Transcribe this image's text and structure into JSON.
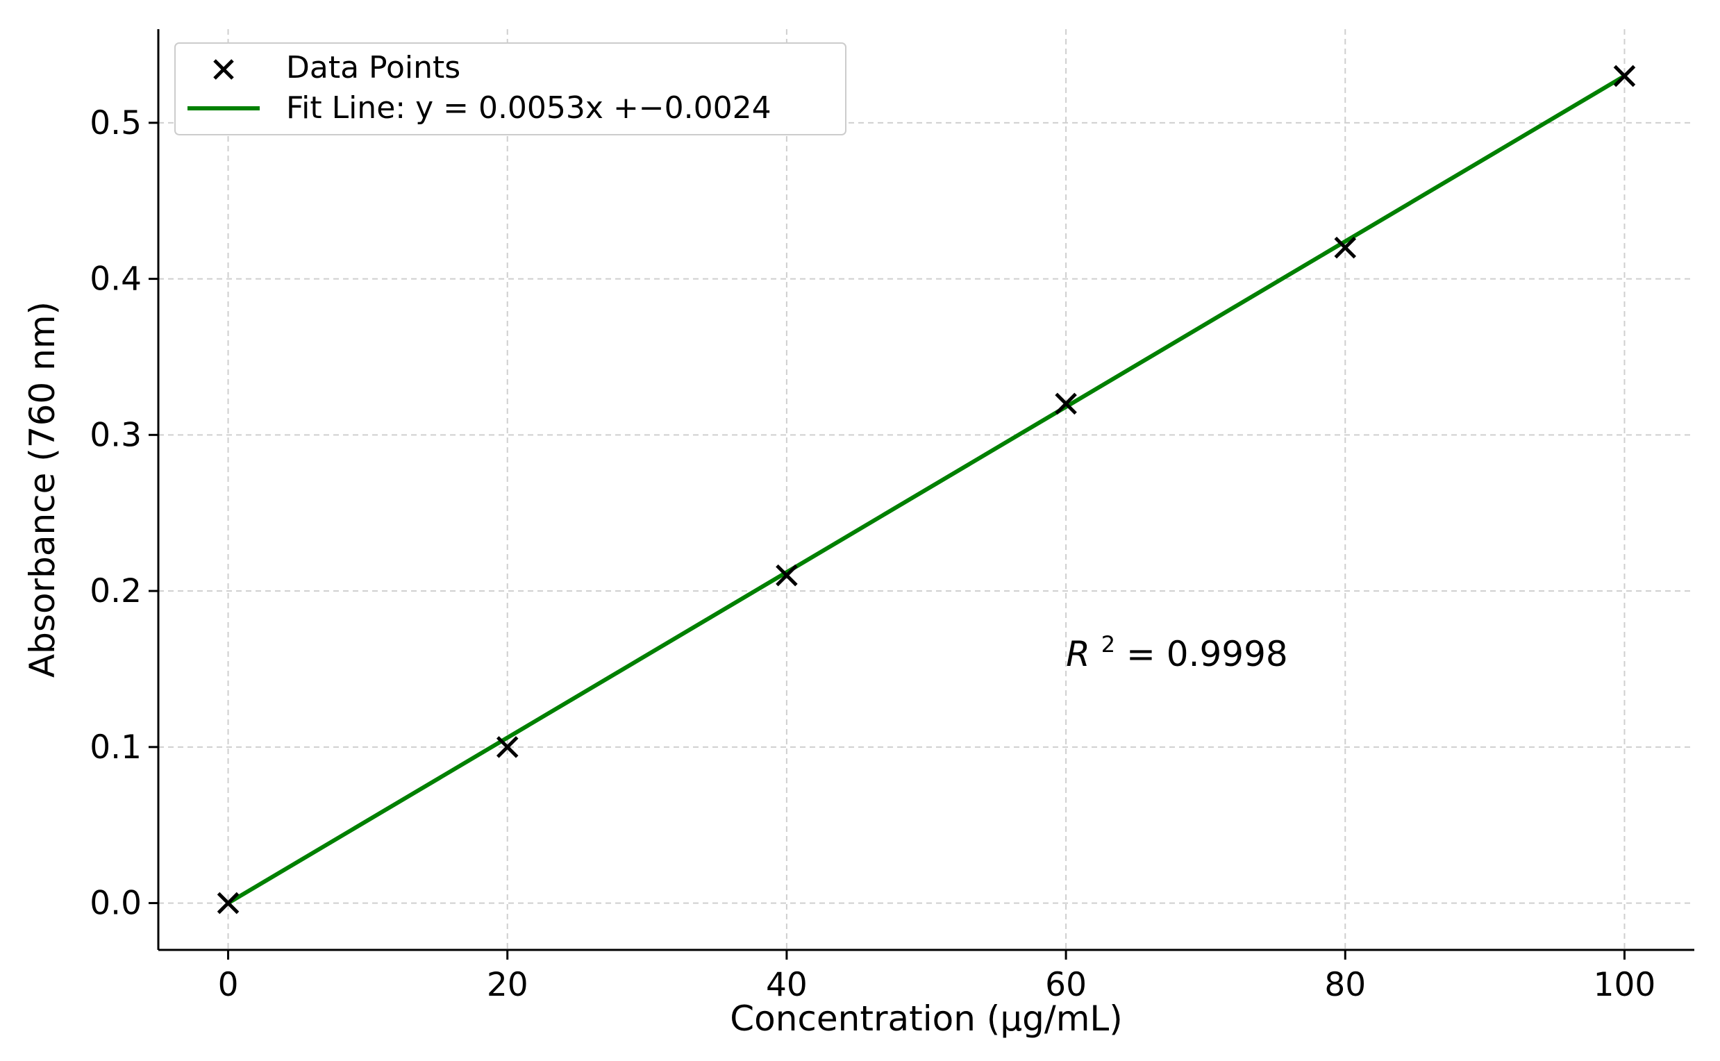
{
  "chart_data": {
    "type": "scatter",
    "xlabel": "Concentration (µg/mL)",
    "ylabel": "Absorbance (760 nm)",
    "xlim": [
      -5,
      105
    ],
    "ylim": [
      -0.03,
      0.56
    ],
    "x_ticks": [
      0,
      20,
      40,
      60,
      80,
      100
    ],
    "y_ticks": [
      0.0,
      0.1,
      0.2,
      0.3,
      0.4,
      0.5
    ],
    "x_tick_labels": [
      "0",
      "20",
      "40",
      "60",
      "80",
      "100"
    ],
    "y_tick_labels": [
      "0.0",
      "0.1",
      "0.2",
      "0.3",
      "0.4",
      "0.5"
    ],
    "grid": true,
    "legend_position": "top-left",
    "series": [
      {
        "name": "Data Points",
        "kind": "scatter",
        "marker": "x",
        "color": "#000000",
        "x": [
          0,
          20,
          40,
          60,
          80,
          100
        ],
        "y": [
          0.0,
          0.1,
          0.21,
          0.32,
          0.42,
          0.53
        ]
      },
      {
        "name": "Fit Line: y = 0.0053x +−0.0024",
        "kind": "line",
        "color": "#008000",
        "slope": 0.0053,
        "intercept": -0.0024,
        "x": [
          0,
          100
        ],
        "y": [
          0.0,
          0.53
        ]
      }
    ],
    "annotation": {
      "symbol": "R",
      "superscript": "2",
      "text": " = 0.9998",
      "x": 60,
      "y": 0.16
    }
  }
}
